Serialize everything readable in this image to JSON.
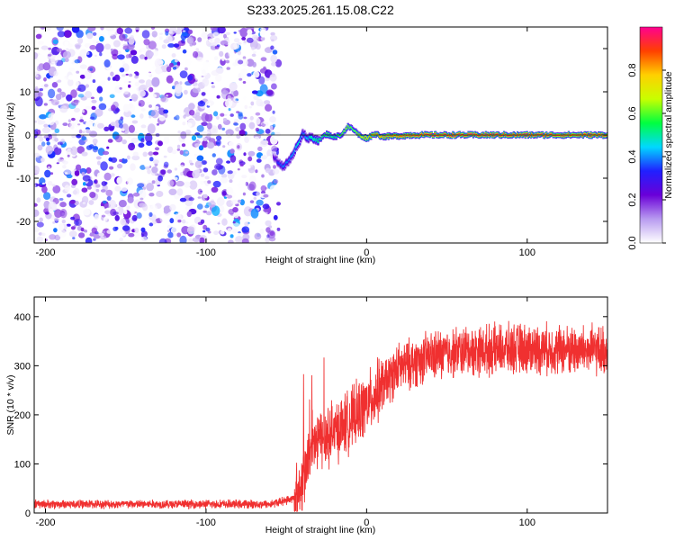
{
  "title": "S233.2025.261.15.08.C22",
  "chart_data": [
    {
      "type": "heatmap",
      "name": "spectrogram",
      "xlabel": "Height of straight line (km)",
      "ylabel": "Frequency (Hz)",
      "xlim": [
        -207,
        150
      ],
      "ylim": [
        -25,
        25
      ],
      "xticks": [
        -200,
        -100,
        0,
        100
      ],
      "yticks": [
        -20,
        -10,
        0,
        10,
        20
      ],
      "xtick_labels": [
        "-200",
        "-100",
        "0",
        "100"
      ],
      "ytick_labels": [
        "-20",
        "-10",
        "0",
        "10",
        "20"
      ],
      "noise_region_x": [
        -207,
        -57
      ],
      "signal_track": {
        "x": [
          -58,
          -55,
          -52,
          -48,
          -45,
          -42,
          -40,
          -37,
          -35,
          -30,
          -25,
          -20,
          -15,
          -12,
          -8,
          -5,
          0,
          5,
          10,
          20,
          30,
          60,
          90,
          120,
          150
        ],
        "freq": [
          -5,
          -6.5,
          -7.2,
          -6,
          -3.5,
          -1.5,
          0.5,
          -1,
          -0.5,
          -1.2,
          0.2,
          -0.5,
          0.3,
          2,
          1.2,
          0,
          -0.8,
          0.3,
          -0.4,
          -0.2,
          0,
          0,
          0,
          0,
          0
        ],
        "amplitude": [
          0.25,
          0.35,
          0.4,
          0.4,
          0.45,
          0.5,
          0.4,
          0.45,
          0.5,
          0.55,
          0.6,
          0.55,
          0.65,
          0.7,
          0.6,
          0.75,
          0.8,
          0.85,
          0.85,
          0.9,
          0.95,
          0.97,
          0.97,
          0.95,
          0.93
        ]
      },
      "colorbar": {
        "label": "Normalized spectral amplitude",
        "range": [
          0,
          1
        ],
        "ticks": [
          0,
          0.2,
          0.4,
          0.6,
          0.8
        ],
        "tick_labels": [
          "0.0",
          "0.2",
          "0.4",
          "0.6",
          "0.8"
        ],
        "colors": [
          "#ffffff",
          "#b89bf0",
          "#6a00d8",
          "#2020ff",
          "#00d8ff",
          "#00ff40",
          "#c8ff00",
          "#ffd000",
          "#ff4000",
          "#ff0090"
        ]
      }
    },
    {
      "type": "line",
      "name": "snr",
      "xlabel": "Height of straight line (km)",
      "ylabel": "SNR (10 * v/v)",
      "xlim": [
        -207,
        150
      ],
      "ylim": [
        0,
        440
      ],
      "xticks": [
        -200,
        -100,
        0,
        100
      ],
      "yticks": [
        0,
        100,
        200,
        300,
        400
      ],
      "xtick_labels": [
        "-200",
        "-100",
        "0",
        "100"
      ],
      "ytick_labels": [
        "0",
        "100",
        "200",
        "300",
        "400"
      ],
      "line_color": "#f03030",
      "trend": {
        "x": [
          -207,
          -60,
          -45,
          -40,
          -35,
          -30,
          -20,
          -10,
          0,
          10,
          20,
          40,
          60,
          100,
          150
        ],
        "y": [
          18,
          18,
          30,
          70,
          120,
          150,
          165,
          190,
          220,
          260,
          295,
          320,
          330,
          335,
          330
        ]
      },
      "noise_amplitude": 60
    }
  ]
}
